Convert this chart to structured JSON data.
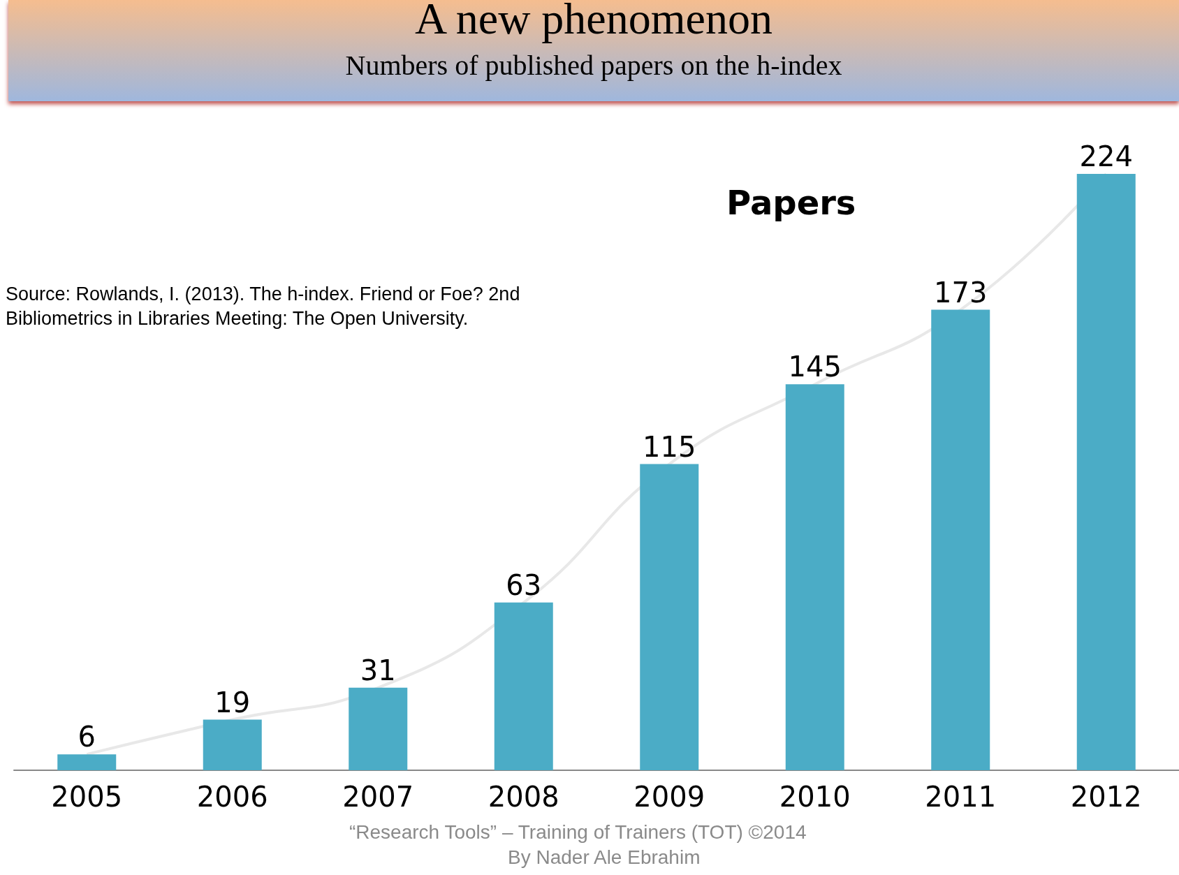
{
  "chart_data": {
    "type": "bar",
    "title": "A new phenomenon",
    "subtitle": "Numbers of published papers on the h-index",
    "categories": [
      "2005",
      "2006",
      "2007",
      "2008",
      "2009",
      "2010",
      "2011",
      "2012"
    ],
    "series": [
      {
        "color": "#4bacc6",
        "values": [
          6,
          19,
          31,
          63,
          115,
          145,
          173,
          224
        ]
      },
      {
        "type": "line",
        "color": "#e8e8e8",
        "marker": "none",
        "values": [
          6,
          19,
          31,
          63,
          115,
          145,
          173,
          224
        ],
        "value_labels": [
          null,
          null,
          null,
          null,
          null,
          null,
          null,
          null
        ]
      }
    ],
    "data_labels": true,
    "tick_labels": "x",
    "grid": false,
    "annotations": [
      "Papers",
      "Source: Rowlands, I. (2013). The h-index.  Friend or Foe? 2nd Bibliometrics in Libraries Meeting: The Open University.",
      "“Research Tools”  – Training of Trainers (TOT)   ©2014",
      "By Nader Ale Ebrahim"
    ]
  }
}
